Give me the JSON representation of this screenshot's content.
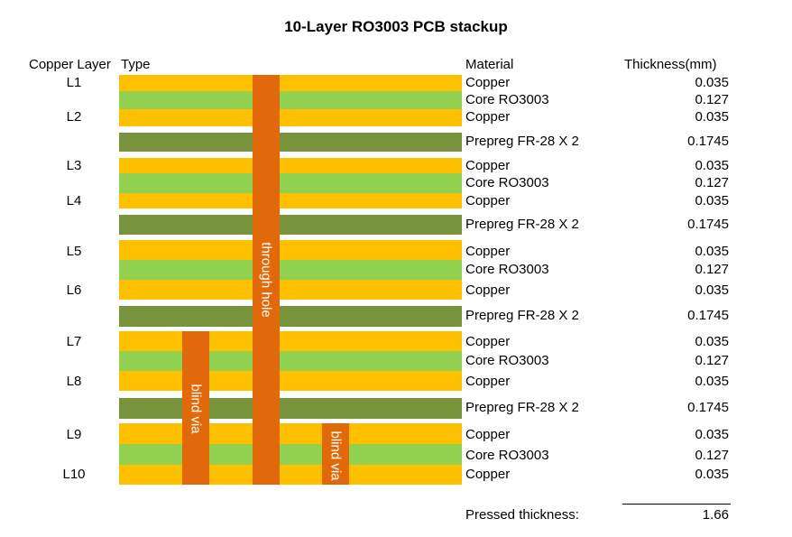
{
  "title": "10-Layer RO3003 PCB stackup",
  "headers": {
    "copper_layer": "Copper Layer",
    "type": "Type",
    "material": "Material",
    "thickness": "Thickness(mm)"
  },
  "colors": {
    "copper": "#ffc000",
    "core": "#92d050",
    "prepreg": "#77933c",
    "via": "#e1690a"
  },
  "layers": [
    {
      "kind": "copper",
      "copper_layer": "L1",
      "material": "Copper",
      "thickness": "0.035"
    },
    {
      "kind": "core",
      "copper_layer": "",
      "material": "Core RO3003",
      "thickness": "0.127"
    },
    {
      "kind": "copper",
      "copper_layer": "L2",
      "material": "Copper",
      "thickness": "0.035"
    },
    {
      "kind": "prepreg",
      "copper_layer": "",
      "material": "Prepreg FR-28 X 2",
      "thickness": "0.1745"
    },
    {
      "kind": "copper",
      "copper_layer": "L3",
      "material": "Copper",
      "thickness": "0.035"
    },
    {
      "kind": "core",
      "copper_layer": "",
      "material": "Core RO3003",
      "thickness": "0.127"
    },
    {
      "kind": "copper",
      "copper_layer": "L4",
      "material": "Copper",
      "thickness": "0.035"
    },
    {
      "kind": "prepreg",
      "copper_layer": "",
      "material": "Prepreg FR-28 X 2",
      "thickness": "0.1745"
    },
    {
      "kind": "copper",
      "copper_layer": "L5",
      "material": "Copper",
      "thickness": "0.035"
    },
    {
      "kind": "core",
      "copper_layer": "",
      "material": "Core RO3003",
      "thickness": "0.127"
    },
    {
      "kind": "copper",
      "copper_layer": "L6",
      "material": "Copper",
      "thickness": "0.035"
    },
    {
      "kind": "prepreg",
      "copper_layer": "",
      "material": "Prepreg FR-28 X 2",
      "thickness": "0.1745"
    },
    {
      "kind": "copper",
      "copper_layer": "L7",
      "material": "Copper",
      "thickness": "0.035"
    },
    {
      "kind": "core",
      "copper_layer": "",
      "material": "Core RO3003",
      "thickness": "0.127"
    },
    {
      "kind": "copper",
      "copper_layer": "L8",
      "material": "Copper",
      "thickness": "0.035"
    },
    {
      "kind": "prepreg",
      "copper_layer": "",
      "material": "Prepreg FR-28 X 2",
      "thickness": "0.1745"
    },
    {
      "kind": "copper",
      "copper_layer": "L9",
      "material": "Copper",
      "thickness": "0.035"
    },
    {
      "kind": "core",
      "copper_layer": "",
      "material": "Core RO3003",
      "thickness": "0.127"
    },
    {
      "kind": "copper",
      "copper_layer": "L10",
      "material": "Copper",
      "thickness": "0.035"
    }
  ],
  "vias": [
    {
      "label": "through hole",
      "from": "L1",
      "to": "L10"
    },
    {
      "label": "blind via",
      "from": "L7",
      "to": "L10"
    },
    {
      "label": "blind via",
      "from": "L9",
      "to": "L10"
    }
  ],
  "total": {
    "label": "Pressed thickness:",
    "value": "1.66"
  }
}
